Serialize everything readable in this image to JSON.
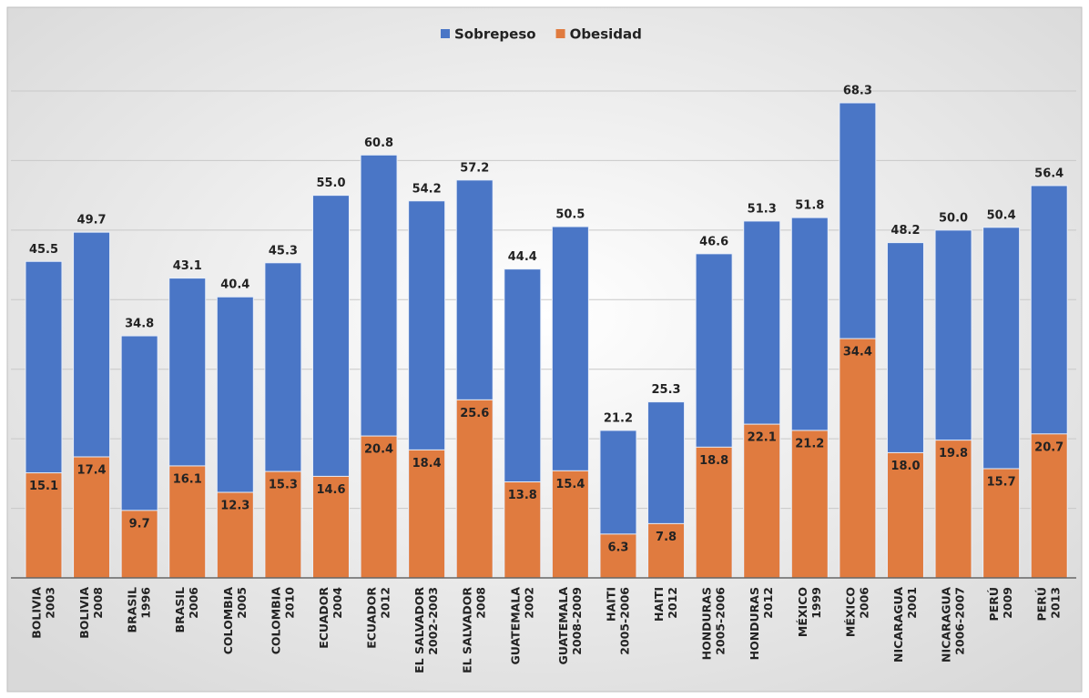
{
  "chart_data": {
    "type": "bar",
    "categories": [
      [
        "BOLIVIA",
        "2003"
      ],
      [
        "BOLIVIA",
        "2008"
      ],
      [
        "BRASIL",
        "1996"
      ],
      [
        "BRASIL",
        "2006"
      ],
      [
        "COLOMBIA",
        "2005"
      ],
      [
        "COLOMBIA",
        "2010"
      ],
      [
        "ECUADOR",
        "2004"
      ],
      [
        "ECUADOR",
        "2012"
      ],
      [
        "EL SALVADOR",
        "2002-2003"
      ],
      [
        "EL SALVADOR",
        "2008"
      ],
      [
        "GUATEMALA",
        "2002"
      ],
      [
        "GUATEMALA",
        "2008-2009"
      ],
      [
        "HAITI",
        "2005-2006"
      ],
      [
        "HAITI",
        "2012"
      ],
      [
        "HONDURAS",
        "2005-2006"
      ],
      [
        "HONDURAS",
        "2012"
      ],
      [
        "MÉXICO",
        "1999"
      ],
      [
        "MÉXICO",
        "2006"
      ],
      [
        "NICARAGUA",
        "2001"
      ],
      [
        "NICARAGUA",
        "2006-2007"
      ],
      [
        "PERÚ",
        "2009"
      ],
      [
        "PERÚ",
        "2013"
      ]
    ],
    "series": [
      {
        "name": "Sobrepeso",
        "color": "#4a76c6",
        "values": [
          45.5,
          49.7,
          34.8,
          43.1,
          40.4,
          45.3,
          55.0,
          60.8,
          54.2,
          57.2,
          44.4,
          50.5,
          21.2,
          25.3,
          46.6,
          51.3,
          51.8,
          68.3,
          48.2,
          50.0,
          50.4,
          56.4
        ],
        "value_labels": [
          "45.5",
          "49.7",
          "34.8",
          "43.1",
          "40.4",
          "45.3",
          "55.0",
          "60.8",
          "54.2",
          "57.2",
          "44.4",
          "50.5",
          "21.2",
          "25.3",
          "46.6",
          "51.3",
          "51.8",
          "68.3",
          "48.2",
          "50.0",
          "50.4",
          "56.4"
        ]
      },
      {
        "name": "Obesidad",
        "color": "#e07b3f",
        "values": [
          15.1,
          17.4,
          9.7,
          16.1,
          12.3,
          15.3,
          14.6,
          20.4,
          18.4,
          25.6,
          13.8,
          15.4,
          6.3,
          7.8,
          18.8,
          22.1,
          21.2,
          34.4,
          18.0,
          19.8,
          15.7,
          20.7
        ],
        "value_labels": [
          "15.1",
          "17.4",
          "9.7",
          "16.1",
          "12.3",
          "15.3",
          "14.6",
          "20.4",
          "18.4",
          "25.6",
          "13.8",
          "15.4",
          "6.3",
          "7.8",
          "18.8",
          "22.1",
          "21.2",
          "34.4",
          "18.0",
          "19.8",
          "15.7",
          "20.7"
        ]
      }
    ],
    "ylim": [
      0,
      70
    ],
    "yticks": [
      0,
      10,
      20,
      30,
      40,
      50,
      60,
      70
    ],
    "grid": true,
    "legend": "top"
  }
}
